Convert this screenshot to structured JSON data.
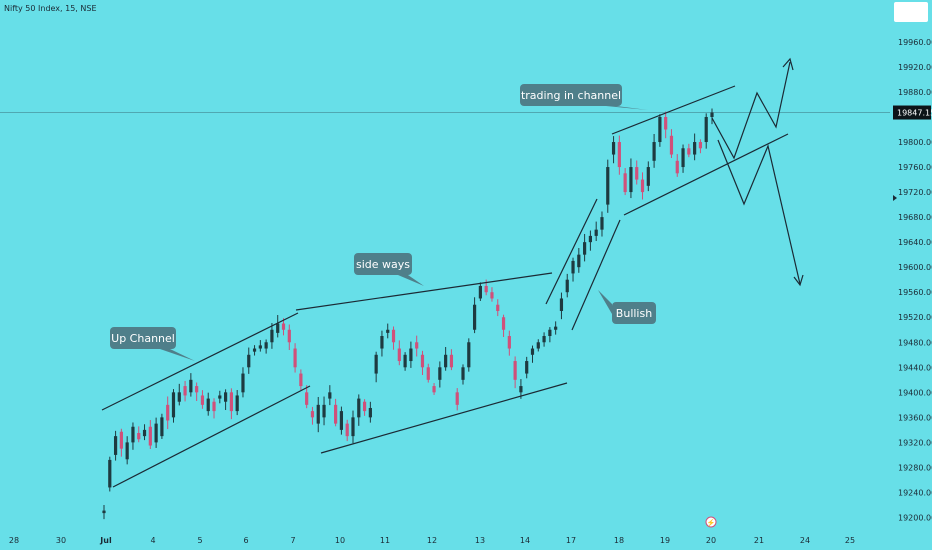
{
  "header": {
    "title": "Nifty 50 Index, 15, NSE"
  },
  "chart_data": {
    "type": "candlestick",
    "y_ticks": [
      19200,
      19240,
      19280,
      19320,
      19360,
      19400,
      19440,
      19480,
      19520,
      19560,
      19600,
      19640,
      19680,
      19720,
      19760,
      19800,
      19840,
      19880,
      19920,
      19960
    ],
    "y_tick_labels": [
      "19200.00",
      "19240.00",
      "19280.00",
      "19320.00",
      "19360.00",
      "19400.00",
      "19440.00",
      "19480.00",
      "19520.00",
      "19560.00",
      "19600.00",
      "19640.00",
      "19680.00",
      "19720.00",
      "19760.00",
      "19800.00",
      "19840.00",
      "19880.00",
      "19920.00",
      "19960.00"
    ],
    "y_hidden_ticks": [
      "19840.00"
    ],
    "ylim": [
      19180,
      19995
    ],
    "x_ticks": [
      "28",
      "30",
      "Jul",
      "4",
      "5",
      "6",
      "7",
      "10",
      "11",
      "12",
      "13",
      "14",
      "17",
      "18",
      "19",
      "20",
      "21",
      "24",
      "25"
    ],
    "last_price": 19847.15,
    "last_price_label": "19847.15",
    "price_path": [
      [
        19207,
        19211
      ],
      [
        19248,
        19292
      ],
      [
        19300,
        19330
      ],
      [
        19337,
        19310
      ],
      [
        19293,
        19320
      ],
      [
        19320,
        19345
      ],
      [
        19335,
        19325
      ],
      [
        19330,
        19340
      ],
      [
        19345,
        19315
      ],
      [
        19320,
        19350
      ],
      [
        19330,
        19360
      ],
      [
        19380,
        19355
      ],
      [
        19360,
        19400
      ],
      [
        19385,
        19400
      ],
      [
        19410,
        19395
      ],
      [
        19400,
        19420
      ],
      [
        19410,
        19400
      ],
      [
        19395,
        19380
      ],
      [
        19370,
        19390
      ],
      [
        19385,
        19370
      ],
      [
        19390,
        19395
      ],
      [
        19385,
        19400
      ],
      [
        19400,
        19370
      ],
      [
        19370,
        19395
      ],
      [
        19400,
        19430
      ],
      [
        19440,
        19460
      ],
      [
        19465,
        19470
      ],
      [
        19470,
        19475
      ],
      [
        19470,
        19480
      ],
      [
        19480,
        19500
      ],
      [
        19495,
        19510
      ],
      [
        19510,
        19500
      ],
      [
        19500,
        19480
      ],
      [
        19470,
        19440
      ],
      [
        19430,
        19410
      ],
      [
        19400,
        19380
      ],
      [
        19370,
        19360
      ],
      [
        19350,
        19380
      ],
      [
        19360,
        19380
      ],
      [
        19390,
        19400
      ],
      [
        19380,
        19350
      ],
      [
        19340,
        19370
      ],
      [
        19350,
        19330
      ],
      [
        19330,
        19360
      ],
      [
        19360,
        19390
      ],
      [
        19385,
        19370
      ],
      [
        19360,
        19375
      ],
      [
        19430,
        19460
      ],
      [
        19470,
        19490
      ],
      [
        19495,
        19500
      ],
      [
        19500,
        19480
      ],
      [
        19470,
        19450
      ],
      [
        19440,
        19460
      ],
      [
        19450,
        19470
      ],
      [
        19480,
        19470
      ],
      [
        19460,
        19440
      ],
      [
        19440,
        19420
      ],
      [
        19410,
        19400
      ],
      [
        19420,
        19440
      ],
      [
        19440,
        19460
      ],
      [
        19460,
        19440
      ],
      [
        19400,
        19380
      ],
      [
        19420,
        19440
      ],
      [
        19440,
        19480
      ],
      [
        19500,
        19540
      ],
      [
        19550,
        19570
      ],
      [
        19570,
        19560
      ],
      [
        19560,
        19550
      ],
      [
        19540,
        19530
      ],
      [
        19520,
        19500
      ],
      [
        19490,
        19470
      ],
      [
        19450,
        19420
      ],
      [
        19400,
        19410
      ],
      [
        19430,
        19450
      ],
      [
        19460,
        19470
      ],
      [
        19470,
        19480
      ],
      [
        19480,
        19490
      ],
      [
        19490,
        19500
      ],
      [
        19500,
        19505
      ],
      [
        19530,
        19550
      ],
      [
        19560,
        19580
      ],
      [
        19590,
        19610
      ],
      [
        19600,
        19620
      ],
      [
        19620,
        19640
      ],
      [
        19640,
        19650
      ],
      [
        19650,
        19660
      ],
      [
        19660,
        19680
      ],
      [
        19700,
        19760
      ],
      [
        19780,
        19800
      ],
      [
        19800,
        19760
      ],
      [
        19750,
        19720
      ],
      [
        19720,
        19760
      ],
      [
        19760,
        19740
      ],
      [
        19740,
        19720
      ],
      [
        19730,
        19760
      ],
      [
        19770,
        19800
      ],
      [
        19800,
        19840
      ],
      [
        19840,
        19820
      ],
      [
        19810,
        19780
      ],
      [
        19770,
        19750
      ],
      [
        19760,
        19790
      ],
      [
        19790,
        19780
      ],
      [
        19780,
        19800
      ],
      [
        19800,
        19790
      ],
      [
        19800,
        19840
      ],
      [
        19840,
        19847.15
      ]
    ],
    "annotations": [
      {
        "label": "Up Channel"
      },
      {
        "label": "side ways"
      },
      {
        "label": "trading in channel"
      },
      {
        "label": "Bullish"
      }
    ]
  },
  "colors": {
    "background": "#67dfe8",
    "candle_up": "#1e3a40",
    "candle_down": "#d0507a",
    "trendline": "#1b2a35",
    "callout": "#4f7f8a",
    "grid": "#1b2a35"
  }
}
